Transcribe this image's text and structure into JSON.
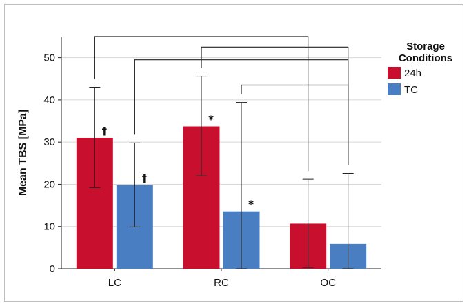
{
  "chart_data": {
    "type": "bar",
    "title": "",
    "xlabel": "",
    "ylabel": "Mean TBS [MPa]",
    "ylim": [
      0,
      55
    ],
    "yticks": [
      0,
      10,
      20,
      30,
      40,
      50
    ],
    "grid": "horizontal",
    "categories": [
      "LC",
      "RC",
      "OC"
    ],
    "legend": {
      "title_lines": [
        "Storage",
        "Conditions"
      ],
      "placement": "right"
    },
    "series": [
      {
        "name": "24h",
        "color": "#c8102e",
        "values": [
          31,
          33.7,
          10.7
        ],
        "error_low": [
          19.2,
          22,
          0.3
        ],
        "error_high": [
          43,
          45.6,
          21.2
        ],
        "markers": [
          "†",
          "*",
          ""
        ]
      },
      {
        "name": "TC",
        "color": "#4a7ec2",
        "values": [
          19.8,
          13.6,
          5.9
        ],
        "error_low": [
          9.9,
          0,
          0
        ],
        "error_high": [
          29.8,
          39.4,
          22.6
        ],
        "markers": [
          "†",
          "*",
          ""
        ]
      }
    ],
    "significance_brackets": [
      {
        "from": {
          "category": "LC",
          "series": "24h"
        },
        "to": {
          "category": "OC",
          "series": "24h"
        },
        "y": 55
      },
      {
        "from": {
          "category": "RC",
          "series": "24h"
        },
        "to": {
          "category": "OC",
          "series": "TC"
        },
        "y": 52.5
      },
      {
        "from": {
          "category": "LC",
          "series": "TC"
        },
        "to": {
          "category": "OC",
          "series": "TC"
        },
        "y": 49.5
      },
      {
        "from": {
          "category": "RC",
          "series": "TC"
        },
        "to": {
          "category": "OC",
          "series": "TC"
        },
        "y": 43.5
      }
    ]
  }
}
